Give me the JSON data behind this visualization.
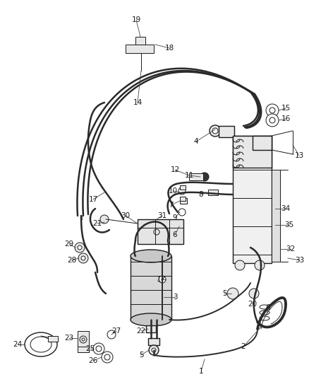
{
  "bg_color": "#ffffff",
  "line_color": "#1a1a1a",
  "label_color": "#1a1a1a",
  "fig_width": 4.38,
  "fig_height": 5.33,
  "dpi": 100,
  "lw_tube": 1.8,
  "lw_tube2": 1.4,
  "lw_med": 1.0,
  "lw_thin": 0.7,
  "label_fs": 7.5,
  "tube_color": "#2a2a2a",
  "component_fill": "#e8e8e8",
  "component_edge": "#1a1a1a"
}
